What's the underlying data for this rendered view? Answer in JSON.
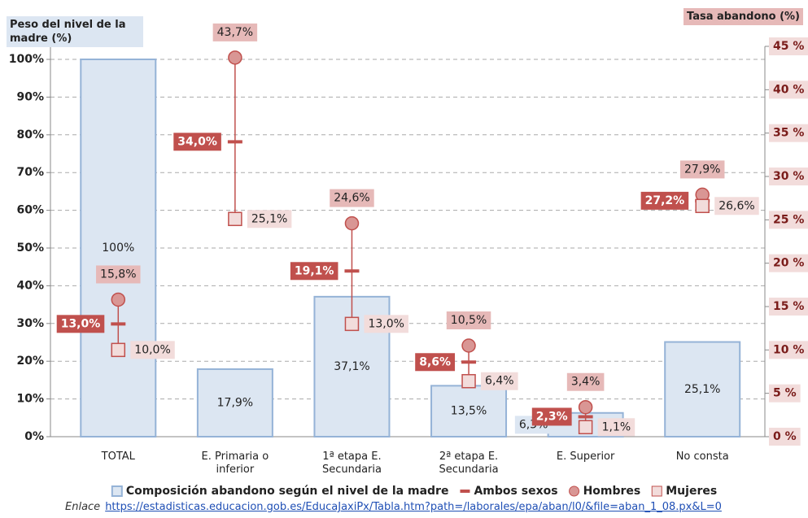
{
  "chart_data": {
    "type": "bar",
    "y_title": "Peso del nivel de la madre (%)",
    "y2_title": "Tasa abandono (%)",
    "categories": [
      "TOTAL",
      "E. Primaria o inferior",
      "1ª etapa E. Secundaria",
      "2ª etapa E. Secundaria",
      "E. Superior",
      "No consta"
    ],
    "series": [
      {
        "name": "Composición abandono según el nivel de la madre",
        "type": "bar",
        "axis": "y",
        "color": "#dce6f2",
        "edge": "#95b3d7",
        "values": [
          100,
          17.9,
          37.1,
          13.5,
          6.3,
          25.1
        ],
        "value_labels": [
          "100%",
          "17,9%",
          "37,1%",
          "13,5%",
          "6,3%",
          "25,1%"
        ]
      },
      {
        "name": "Ambos sexos",
        "marker": "dash",
        "axis": "y2",
        "color": "#c0504d",
        "values": [
          13.0,
          34.0,
          19.1,
          8.6,
          2.3,
          27.2
        ],
        "value_labels": [
          "13,0%",
          "34,0%",
          "19,1%",
          "8,6%",
          "2,3%",
          "27,2%"
        ]
      },
      {
        "name": "Hombres",
        "marker": "circle",
        "axis": "y2",
        "color": "#d99694",
        "values": [
          15.8,
          43.7,
          24.6,
          10.5,
          3.4,
          27.9
        ],
        "value_labels": [
          "15,8%",
          "43,7%",
          "24,6%",
          "10,5%",
          "3,4%",
          "27,9%"
        ]
      },
      {
        "name": "Mujeres",
        "marker": "square",
        "axis": "y2",
        "color": "#f2dcdb",
        "values": [
          10.0,
          25.1,
          13.0,
          6.4,
          1.1,
          26.6
        ],
        "value_labels": [
          "10,0%",
          "25,1%",
          "13,0%",
          "6,4%",
          "1,1%",
          "26,6%"
        ]
      }
    ],
    "ylim": [
      0,
      100
    ],
    "yticks": [
      {
        "value": 0,
        "label": "0%"
      },
      {
        "value": 10,
        "label": "10%"
      },
      {
        "value": 20,
        "label": "20%"
      },
      {
        "value": 30,
        "label": "30%"
      },
      {
        "value": 40,
        "label": "40%"
      },
      {
        "value": 50,
        "label": "50%"
      },
      {
        "value": 60,
        "label": "60%"
      },
      {
        "value": 70,
        "label": "70%"
      },
      {
        "value": 80,
        "label": "80%"
      },
      {
        "value": 90,
        "label": "90%"
      },
      {
        "value": 100,
        "label": "100%"
      }
    ],
    "y2lim": [
      0,
      45
    ],
    "y2ticks": [
      {
        "value": 0,
        "label": "0 %"
      },
      {
        "value": 5,
        "label": "5 %"
      },
      {
        "value": 10,
        "label": "10 %"
      },
      {
        "value": 15,
        "label": "15 %"
      },
      {
        "value": 20,
        "label": "20 %"
      },
      {
        "value": 25,
        "label": "25 %"
      },
      {
        "value": 30,
        "label": "30 %"
      },
      {
        "value": 35,
        "label": "35 %"
      },
      {
        "value": 40,
        "label": "40 %"
      },
      {
        "value": 45,
        "label": "45 %"
      }
    ],
    "grid": true,
    "link_label": "Enlace",
    "link": "https://estadisticas.educacion.gob.es/EducaJaxiPx/Tabla.htm?path=/laborales/epa/aban/l0/&file=aban_1_08.px&L=0"
  }
}
